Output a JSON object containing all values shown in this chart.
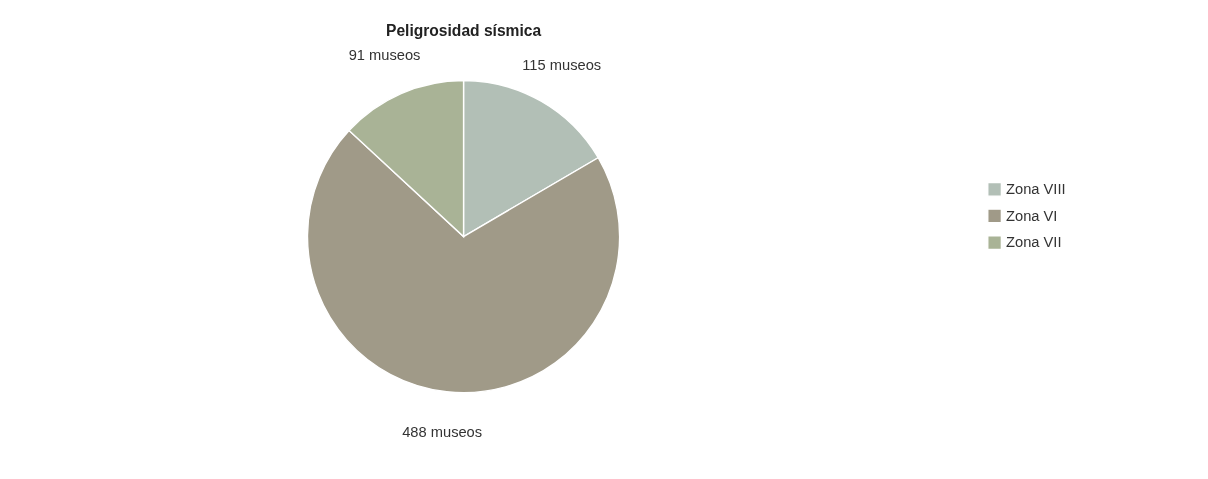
{
  "chart_data": {
    "type": "pie",
    "title": "Peligrosidad sísmica",
    "categories": [
      "Zona VIII",
      "Zona VI",
      "Zona VII"
    ],
    "values": [
      115,
      488,
      91
    ],
    "value_labels": [
      "115 museos",
      "488 museos",
      "91 museos"
    ],
    "colors": [
      "#b2bfb6",
      "#a09a88",
      "#a9b396"
    ],
    "legend": "right"
  }
}
